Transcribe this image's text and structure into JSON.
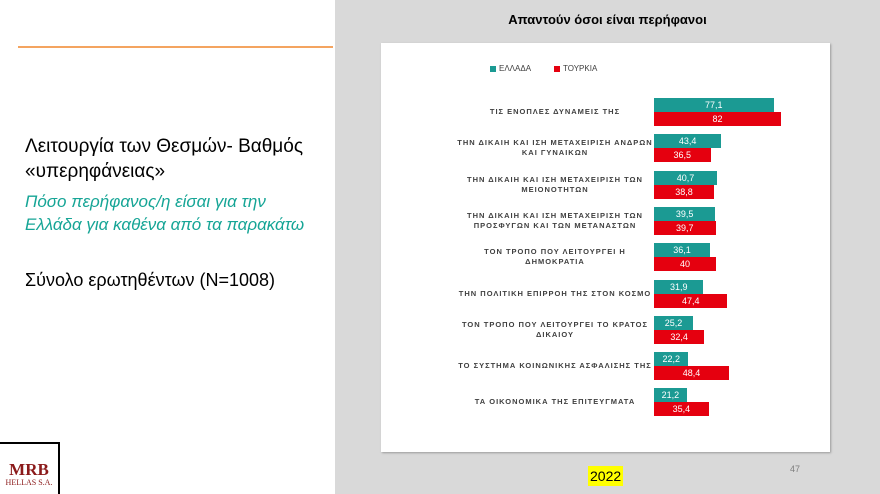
{
  "left_panel": {
    "heading": "Λειτουργία των Θεσμών- Βαθμός «υπερηφάνειας»",
    "question": "Πόσο περήφανος/η είσαι για την Ελλάδα για καθένα από τα παρακάτω",
    "base": "Σύνολο ερωτηθέντων (N=1008)"
  },
  "logo": {
    "name": "MRB",
    "subtitle": "HELLAS S.A."
  },
  "chart_data": {
    "type": "bar",
    "orientation": "horizontal",
    "title": "Απαντούν όσοι είναι περήφανοι",
    "categories": [
      "ΤΙΣ ΕΝΟΠΛΕΣ ΔΥΝΑΜΕΙΣ ΤΗΣ",
      "ΤΗΝ ΔΙΚΑΙΗ ΚΑΙ ΙΣΗ ΜΕΤΑΧΕΙΡΙΣΗ ΑΝΔΡΩΝ ΚΑΙ ΓΥΝΑΙΚΩΝ",
      "ΤΗΝ ΔΙΚΑΙΗ ΚΑΙ ΙΣΗ ΜΕΤΑΧΕΙΡΙΣΗ ΤΩΝ ΜΕΙΟΝΟΤΗΤΩΝ",
      "ΤΗΝ ΔΙΚΑΙΗ ΚΑΙ ΙΣΗ ΜΕΤΑΧΕΙΡΙΣΗ ΤΩΝ ΠΡΟΣΦΥΓΩΝ ΚΑΙ ΤΩΝ ΜΕΤΑΝΑΣΤΩΝ",
      "ΤΟΝ ΤΡΟΠΟ ΠΟΥ ΛΕΙΤΟΥΡΓΕΙ Η ΔΗΜΟΚΡΑΤΙΑ",
      "ΤΗΝ ΠΟΛΙΤΙΚΗ ΕΠΙΡΡΟΗ ΤΗΣ ΣΤΟΝ ΚΟΣΜΟ",
      "ΤΟΝ ΤΡΟΠΟ ΠΟΥ ΛΕΙΤΟΥΡΓΕΙ ΤΟ ΚΡΑΤΟΣ ΔΙΚΑΙΟΥ",
      "ΤΟ ΣΥΣΤΗΜΑ ΚΟΙΝΩΝΙΚΗΣ ΑΣΦΑΛΙΣΗΣ ΤΗΣ",
      "ΤΑ ΟΙΚΟΝΟΜΙΚΑ ΤΗΣ ΕΠΙΤΕΥΓΜΑΤΑ"
    ],
    "series": [
      {
        "name": "ΕΛΛΑΔΑ",
        "color": "#1b9a93",
        "values": [
          77.1,
          43.4,
          40.7,
          39.5,
          36.1,
          31.9,
          25.2,
          22.2,
          21.2
        ],
        "value_labels": [
          "77,1",
          "43,4",
          "40,7",
          "39,5",
          "36,1",
          "31,9",
          "25,2",
          "22,2",
          "21,2"
        ]
      },
      {
        "name": "ΤΟΥΡΚΙΑ",
        "color": "#e5000f",
        "values": [
          82,
          36.5,
          38.8,
          39.7,
          40,
          47.4,
          32.4,
          48.4,
          35.4
        ],
        "value_labels": [
          "82",
          "36,5",
          "38,8",
          "39,7",
          "40",
          "47,4",
          "32,4",
          "48,4",
          "35,4"
        ]
      }
    ],
    "legend": "top"
  },
  "footer": {
    "year": "2022",
    "page": "47"
  }
}
